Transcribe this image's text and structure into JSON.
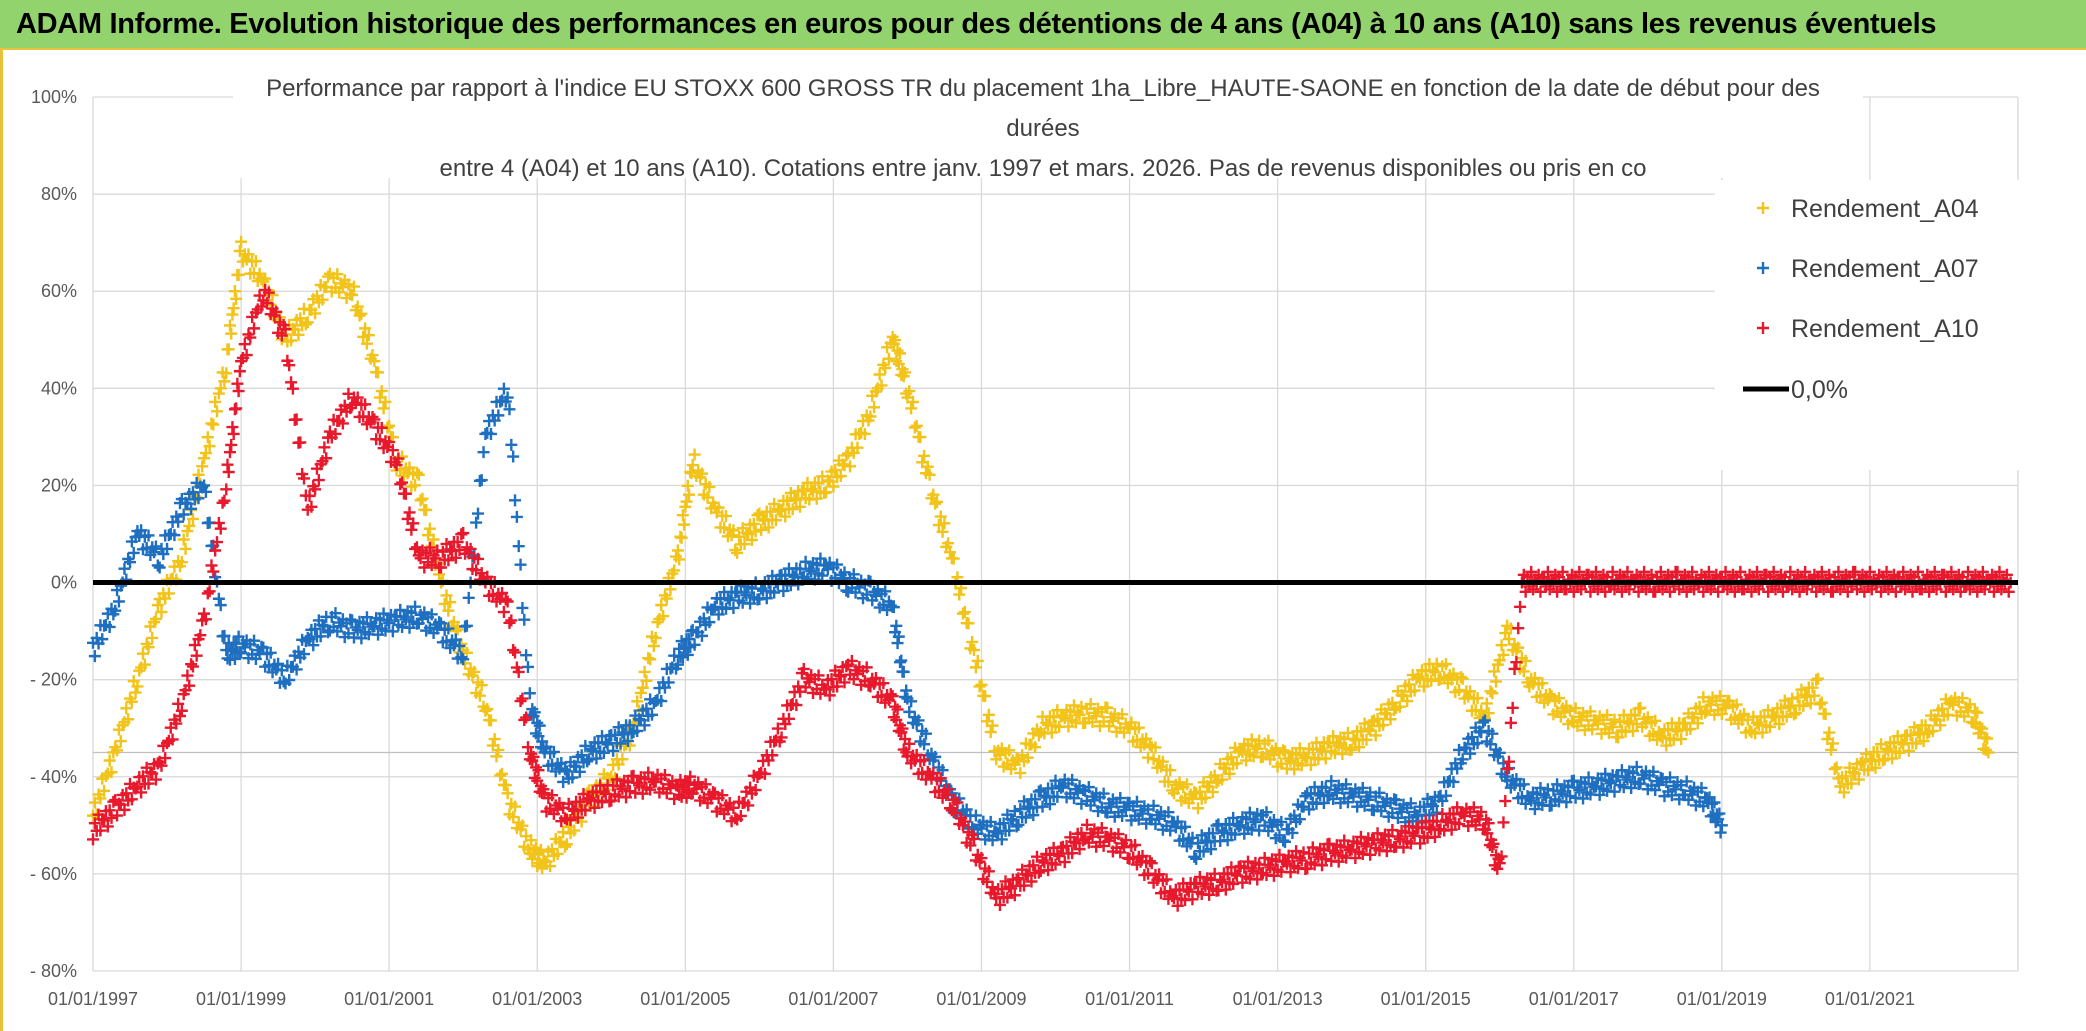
{
  "banner": {
    "title": "ADAM Informe. Evolution historique des performances en euros pour des détentions de 4 ans (A04) à 10 ans (A10) sans les revenus éventuels"
  },
  "chart_data": {
    "type": "scatter",
    "title_lines": [
      "Performance par rapport à l'indice EU STOXX 600 GROSS TR  du placement 1ha_Libre_HAUTE-SAONE en fonction de la date de début pour des",
      "durées",
      "entre 4 (A04) et 10 ans (A10). Cotations entre janv. 1997 et mars. 2026. Pas de revenus disponibles ou pris en co"
    ],
    "xlabel": "",
    "ylabel": "",
    "xlim": [
      1997.0,
      2023.0
    ],
    "ylim": [
      -80,
      100
    ],
    "x_ticks": [
      {
        "value": 1997,
        "label": "01/01/1997"
      },
      {
        "value": 1999,
        "label": "01/01/1999"
      },
      {
        "value": 2001,
        "label": "01/01/2001"
      },
      {
        "value": 2003,
        "label": "01/01/2003"
      },
      {
        "value": 2005,
        "label": "01/01/2005"
      },
      {
        "value": 2007,
        "label": "01/01/2007"
      },
      {
        "value": 2009,
        "label": "01/01/2009"
      },
      {
        "value": 2011,
        "label": "01/01/2011"
      },
      {
        "value": 2013,
        "label": "01/01/2013"
      },
      {
        "value": 2015,
        "label": "01/01/2015"
      },
      {
        "value": 2017,
        "label": "01/01/2017"
      },
      {
        "value": 2019,
        "label": "01/01/2019"
      },
      {
        "value": 2021,
        "label": "01/01/2021"
      }
    ],
    "y_ticks": [
      {
        "value": 100,
        "label": "100%"
      },
      {
        "value": 80,
        "label": "80%"
      },
      {
        "value": 60,
        "label": "60%"
      },
      {
        "value": 40,
        "label": "40%"
      },
      {
        "value": 20,
        "label": "20%"
      },
      {
        "value": 0,
        "label": "0%"
      },
      {
        "value": -20,
        "label": "- 20%"
      },
      {
        "value": -40,
        "label": "- 40%"
      },
      {
        "value": -60,
        "label": "- 60%"
      },
      {
        "value": -80,
        "label": "- 80%"
      }
    ],
    "grid": true,
    "legend_position": "top-right",
    "series": [
      {
        "name": "Rendement_A04",
        "color": "#f2c318",
        "marker": "+",
        "x": [
          1997.0,
          1997.3,
          1997.6,
          1997.9,
          1998.2,
          1998.5,
          1998.8,
          1999.0,
          1999.3,
          1999.6,
          1999.9,
          2000.2,
          2000.5,
          2000.8,
          2001.1,
          2001.4,
          2001.7,
          2002.0,
          2002.3,
          2002.6,
          2002.9,
          2003.1,
          2003.4,
          2003.7,
          2004.0,
          2004.3,
          2004.6,
          2004.9,
          2005.1,
          2005.4,
          2005.7,
          2006.0,
          2006.3,
          2006.6,
          2006.9,
          2007.2,
          2007.5,
          2007.8,
          2008.0,
          2008.3,
          2008.6,
          2008.9,
          2009.2,
          2009.5,
          2009.8,
          2010.1,
          2010.4,
          2010.7,
          2011.0,
          2011.3,
          2011.6,
          2011.9,
          2012.2,
          2012.5,
          2012.8,
          2013.1,
          2013.4,
          2013.7,
          2014.0,
          2014.3,
          2014.6,
          2014.9,
          2015.2,
          2015.5,
          2015.8,
          2016.1,
          2016.4,
          2016.7,
          2017.0,
          2017.3,
          2017.6,
          2017.9,
          2018.2,
          2018.5,
          2018.8,
          2019.1,
          2019.4,
          2019.7,
          2020.0,
          2020.3,
          2020.6,
          2020.9,
          2021.2,
          2021.5,
          2021.8,
          2022.1,
          2022.4,
          2022.6
        ],
        "y": [
          -48,
          -35,
          -20,
          -5,
          5,
          25,
          45,
          68,
          62,
          50,
          55,
          62,
          60,
          45,
          25,
          20,
          0,
          -15,
          -25,
          -45,
          -55,
          -58,
          -52,
          -45,
          -40,
          -30,
          -10,
          5,
          25,
          15,
          8,
          12,
          15,
          18,
          20,
          25,
          35,
          50,
          40,
          20,
          5,
          -15,
          -35,
          -38,
          -30,
          -28,
          -27,
          -28,
          -30,
          -35,
          -42,
          -45,
          -40,
          -35,
          -34,
          -37,
          -36,
          -34,
          -33,
          -30,
          -25,
          -20,
          -18,
          -22,
          -28,
          -10,
          -20,
          -25,
          -28,
          -29,
          -30,
          -28,
          -32,
          -30,
          -25,
          -26,
          -30,
          -28,
          -25,
          -22,
          -42,
          -38,
          -35,
          -33,
          -30,
          -25,
          -27,
          -35
        ]
      },
      {
        "name": "Rendement_A07",
        "color": "#1f6fc0",
        "marker": "+",
        "x": [
          1997.0,
          1997.3,
          1997.6,
          1997.9,
          1998.2,
          1998.5,
          1998.8,
          1999.0,
          1999.3,
          1999.6,
          1999.9,
          2000.2,
          2000.5,
          2000.8,
          2001.1,
          2001.4,
          2001.7,
          2002.0,
          2002.3,
          2002.6,
          2002.9,
          2003.1,
          2003.4,
          2003.7,
          2004.0,
          2004.3,
          2004.6,
          2004.9,
          2005.1,
          2005.4,
          2005.7,
          2006.0,
          2006.3,
          2006.6,
          2006.9,
          2007.2,
          2007.5,
          2007.8,
          2008.0,
          2008.3,
          2008.6,
          2008.9,
          2009.2,
          2009.5,
          2009.8,
          2010.1,
          2010.4,
          2010.7,
          2011.0,
          2011.3,
          2011.6,
          2011.9,
          2012.2,
          2012.5,
          2012.8,
          2013.1,
          2013.4,
          2013.7,
          2014.0,
          2014.3,
          2014.6,
          2014.9,
          2015.2,
          2015.5,
          2015.8,
          2016.1,
          2016.4,
          2016.7,
          2017.0,
          2017.3,
          2017.6,
          2017.9,
          2018.2,
          2018.5,
          2018.8,
          2019.0
        ],
        "y": [
          -14,
          -5,
          10,
          5,
          15,
          20,
          -15,
          -13,
          -15,
          -20,
          -12,
          -8,
          -10,
          -9,
          -8,
          -7,
          -10,
          -15,
          30,
          40,
          -25,
          -35,
          -40,
          -35,
          -33,
          -30,
          -25,
          -15,
          -12,
          -5,
          -3,
          -2,
          0,
          2,
          3,
          0,
          -2,
          -5,
          -25,
          -35,
          -45,
          -50,
          -52,
          -48,
          -45,
          -42,
          -44,
          -46,
          -47,
          -48,
          -50,
          -55,
          -52,
          -50,
          -49,
          -52,
          -45,
          -43,
          -44,
          -45,
          -47,
          -48,
          -45,
          -35,
          -30,
          -40,
          -45,
          -44,
          -43,
          -42,
          -41,
          -40,
          -42,
          -43,
          -45,
          -50
        ]
      },
      {
        "name": "Rendement_A10",
        "color": "#e8192c",
        "marker": "+",
        "x": [
          1997.0,
          1997.3,
          1997.6,
          1997.9,
          1998.2,
          1998.5,
          1998.8,
          1999.0,
          1999.3,
          1999.6,
          1999.9,
          2000.2,
          2000.5,
          2000.8,
          2001.1,
          2001.4,
          2001.7,
          2002.0,
          2002.3,
          2002.6,
          2002.9,
          2003.1,
          2003.4,
          2003.7,
          2004.0,
          2004.3,
          2004.6,
          2004.9,
          2005.1,
          2005.4,
          2005.7,
          2006.0,
          2006.3,
          2006.6,
          2006.9,
          2007.2,
          2007.5,
          2007.8,
          2008.0,
          2008.3,
          2008.6,
          2008.9,
          2009.2,
          2009.5,
          2009.8,
          2010.1,
          2010.4,
          2010.7,
          2011.0,
          2011.3,
          2011.6,
          2011.9,
          2012.2,
          2012.5,
          2012.8,
          2013.1,
          2013.4,
          2013.7,
          2014.0,
          2014.3,
          2014.6,
          2014.9,
          2015.2,
          2015.5,
          2015.8,
          2016.0,
          2016.3,
          2016.6,
          2016.9,
          2017.2,
          2017.5,
          2017.8,
          2018.1,
          2018.4,
          2018.7,
          2019.0,
          2019.3,
          2019.6,
          2019.9,
          2020.2,
          2020.5,
          2020.8,
          2021.1,
          2021.4,
          2021.7,
          2022.0,
          2022.3,
          2022.6,
          2022.9
        ],
        "y": [
          -51,
          -47,
          -42,
          -38,
          -25,
          -8,
          20,
          45,
          60,
          50,
          15,
          30,
          38,
          32,
          25,
          5,
          5,
          8,
          0,
          -5,
          -35,
          -45,
          -48,
          -45,
          -43,
          -42,
          -41,
          -43,
          -42,
          -45,
          -48,
          -40,
          -30,
          -20,
          -22,
          -18,
          -20,
          -25,
          -35,
          -40,
          -45,
          -55,
          -65,
          -62,
          -58,
          -56,
          -52,
          -53,
          -55,
          -60,
          -65,
          -63,
          -62,
          -60,
          -59,
          -58,
          -57,
          -56,
          -55,
          -54,
          -53,
          -52,
          -50,
          -48,
          -49,
          -60,
          0,
          0,
          0,
          0,
          0,
          0,
          0,
          0,
          0,
          0,
          0,
          0,
          0,
          0,
          0,
          0,
          0,
          0,
          0,
          0,
          0,
          0,
          0
        ]
      }
    ],
    "reference_line": {
      "name": "0,0%",
      "value": 0,
      "color": "#000000"
    }
  }
}
